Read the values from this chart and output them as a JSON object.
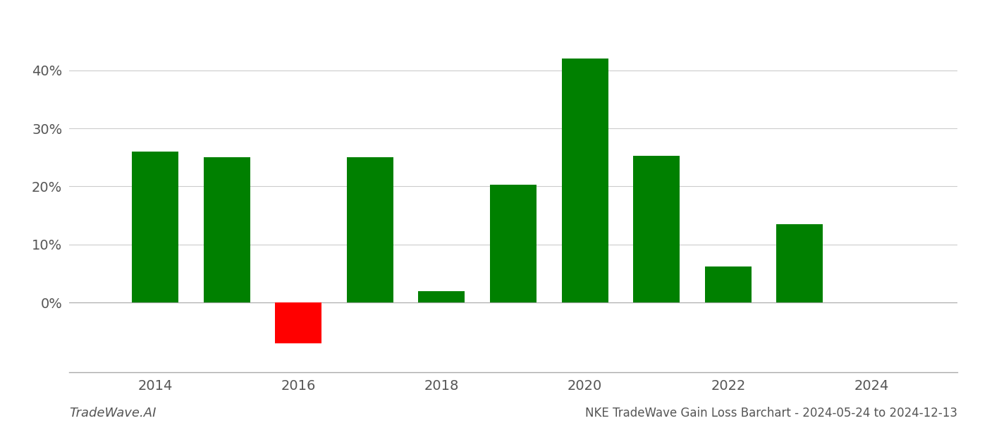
{
  "years": [
    2014,
    2015,
    2016,
    2017,
    2018,
    2019,
    2020,
    2021,
    2022,
    2023
  ],
  "values": [
    26.0,
    25.0,
    -7.0,
    25.0,
    2.0,
    20.3,
    42.0,
    25.3,
    6.2,
    13.5
  ],
  "bar_colors": [
    "#008000",
    "#008000",
    "#ff0000",
    "#008000",
    "#008000",
    "#008000",
    "#008000",
    "#008000",
    "#008000",
    "#008000"
  ],
  "title": "NKE TradeWave Gain Loss Barchart - 2024-05-24 to 2024-12-13",
  "watermark": "TradeWave.AI",
  "ylim": [
    -12,
    47
  ],
  "yticks": [
    0,
    10,
    20,
    30,
    40
  ],
  "xlim": [
    2012.8,
    2025.2
  ],
  "xticks": [
    2014,
    2016,
    2018,
    2020,
    2022,
    2024
  ],
  "background_color": "#ffffff",
  "grid_color": "#cccccc",
  "bar_width": 0.65,
  "tick_labelsize": 14,
  "title_fontsize": 12,
  "watermark_fontsize": 13
}
